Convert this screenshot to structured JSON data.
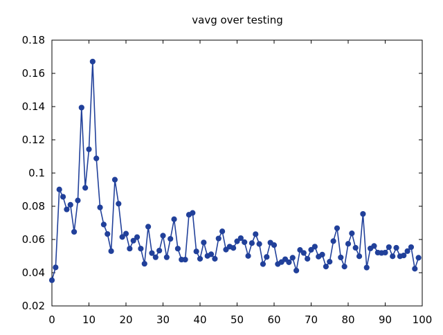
{
  "chart_data": {
    "type": "line",
    "title": "vavg over testing",
    "xlabel": "",
    "ylabel": "",
    "xlim": [
      0,
      100
    ],
    "ylim": [
      0.02,
      0.18
    ],
    "xticks": [
      0,
      10,
      20,
      30,
      40,
      50,
      60,
      70,
      80,
      90,
      100
    ],
    "xtick_labels": [
      "0",
      "10",
      "20",
      "30",
      "40",
      "50",
      "60",
      "70",
      "80",
      "90",
      "100"
    ],
    "yticks": [
      0.02,
      0.04,
      0.06,
      0.08,
      0.1,
      0.12,
      0.14,
      0.16,
      0.18
    ],
    "ytick_labels": [
      "0.02",
      "0.04",
      "0.06",
      "0.08",
      "0.1",
      "0.12",
      "0.14",
      "0.16",
      "0.18"
    ],
    "grid": false,
    "legend": "none",
    "color": "#21409a",
    "series": [
      {
        "x": [
          0,
          1,
          2,
          3,
          4,
          5,
          6,
          7,
          8,
          9,
          10,
          11,
          12,
          13,
          14,
          15,
          16,
          17,
          18,
          19,
          20,
          21,
          22,
          23,
          24,
          25,
          26,
          27,
          28,
          29,
          30,
          31,
          32,
          33,
          34,
          35,
          36,
          37,
          38,
          39,
          40,
          41,
          42,
          43,
          44,
          45,
          46,
          47,
          48,
          49,
          50,
          51,
          52,
          53,
          54,
          55,
          56,
          57,
          58,
          59,
          60,
          61,
          62,
          63,
          64,
          65,
          66,
          67,
          68,
          69,
          70,
          71,
          72,
          73,
          74,
          75,
          76,
          77,
          78,
          79,
          80,
          81,
          82,
          83,
          84,
          85,
          86,
          87,
          88,
          89,
          90,
          91,
          92,
          93,
          94,
          95,
          96,
          97,
          98,
          99
        ],
        "values": [
          0.0355,
          0.0432,
          0.0901,
          0.0857,
          0.0781,
          0.0809,
          0.0646,
          0.0835,
          0.1394,
          0.0911,
          0.1143,
          0.1671,
          0.1088,
          0.0793,
          0.069,
          0.0633,
          0.053,
          0.096,
          0.0815,
          0.0615,
          0.0635,
          0.0545,
          0.0593,
          0.0614,
          0.0545,
          0.0454,
          0.0677,
          0.0518,
          0.0493,
          0.0533,
          0.0623,
          0.0493,
          0.0604,
          0.0722,
          0.0545,
          0.0479,
          0.0479,
          0.0749,
          0.076,
          0.0528,
          0.0484,
          0.0582,
          0.0501,
          0.0511,
          0.0484,
          0.0606,
          0.0649,
          0.0539,
          0.0557,
          0.0549,
          0.0589,
          0.0608,
          0.0584,
          0.0501,
          0.0578,
          0.0632,
          0.0573,
          0.0452,
          0.0495,
          0.0581,
          0.0566,
          0.0452,
          0.0464,
          0.0481,
          0.0463,
          0.049,
          0.0413,
          0.0537,
          0.0519,
          0.0484,
          0.0538,
          0.0557,
          0.0497,
          0.0509,
          0.0437,
          0.0466,
          0.059,
          0.0668,
          0.0492,
          0.0437,
          0.0574,
          0.0637,
          0.055,
          0.0499,
          0.0754,
          0.0431,
          0.0546,
          0.0561,
          0.0521,
          0.0519,
          0.0521,
          0.0554,
          0.0499,
          0.055,
          0.0499,
          0.0504,
          0.053,
          0.0554,
          0.0424,
          0.049
        ]
      }
    ]
  }
}
